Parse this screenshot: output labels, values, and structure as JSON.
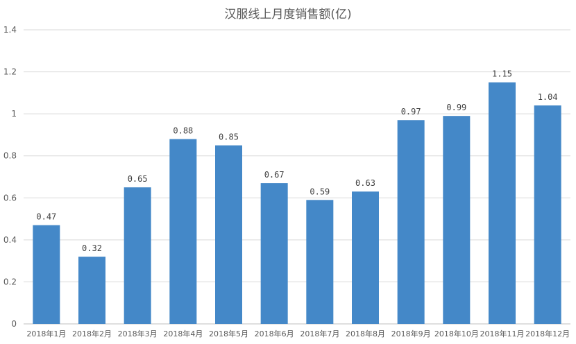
{
  "chart_data": {
    "type": "bar",
    "title": "汉服线上月度销售额(亿)",
    "categories": [
      "2018年1月",
      "2018年2月",
      "2018年3月",
      "2018年4月",
      "2018年5月",
      "2018年6月",
      "2018年7月",
      "2018年8月",
      "2018年9月",
      "2018年10月",
      "2018年11月",
      "2018年12月"
    ],
    "values": [
      0.47,
      0.32,
      0.65,
      0.88,
      0.85,
      0.67,
      0.59,
      0.63,
      0.97,
      0.99,
      1.15,
      1.04
    ],
    "data_labels": [
      "0.47",
      "0.32",
      "0.65",
      "0.88",
      "0.85",
      "0.67",
      "0.59",
      "0.63",
      "0.97",
      "0.99",
      "1.15",
      "1.04"
    ],
    "yticks": [
      "0",
      "0.2",
      "0.4",
      "0.6",
      "0.8",
      "1",
      "1.2",
      "1.4"
    ],
    "ylim": [
      0,
      1.4
    ],
    "xlabel": "",
    "ylabel": "",
    "grid": true,
    "bar_color": "#4488C8"
  }
}
